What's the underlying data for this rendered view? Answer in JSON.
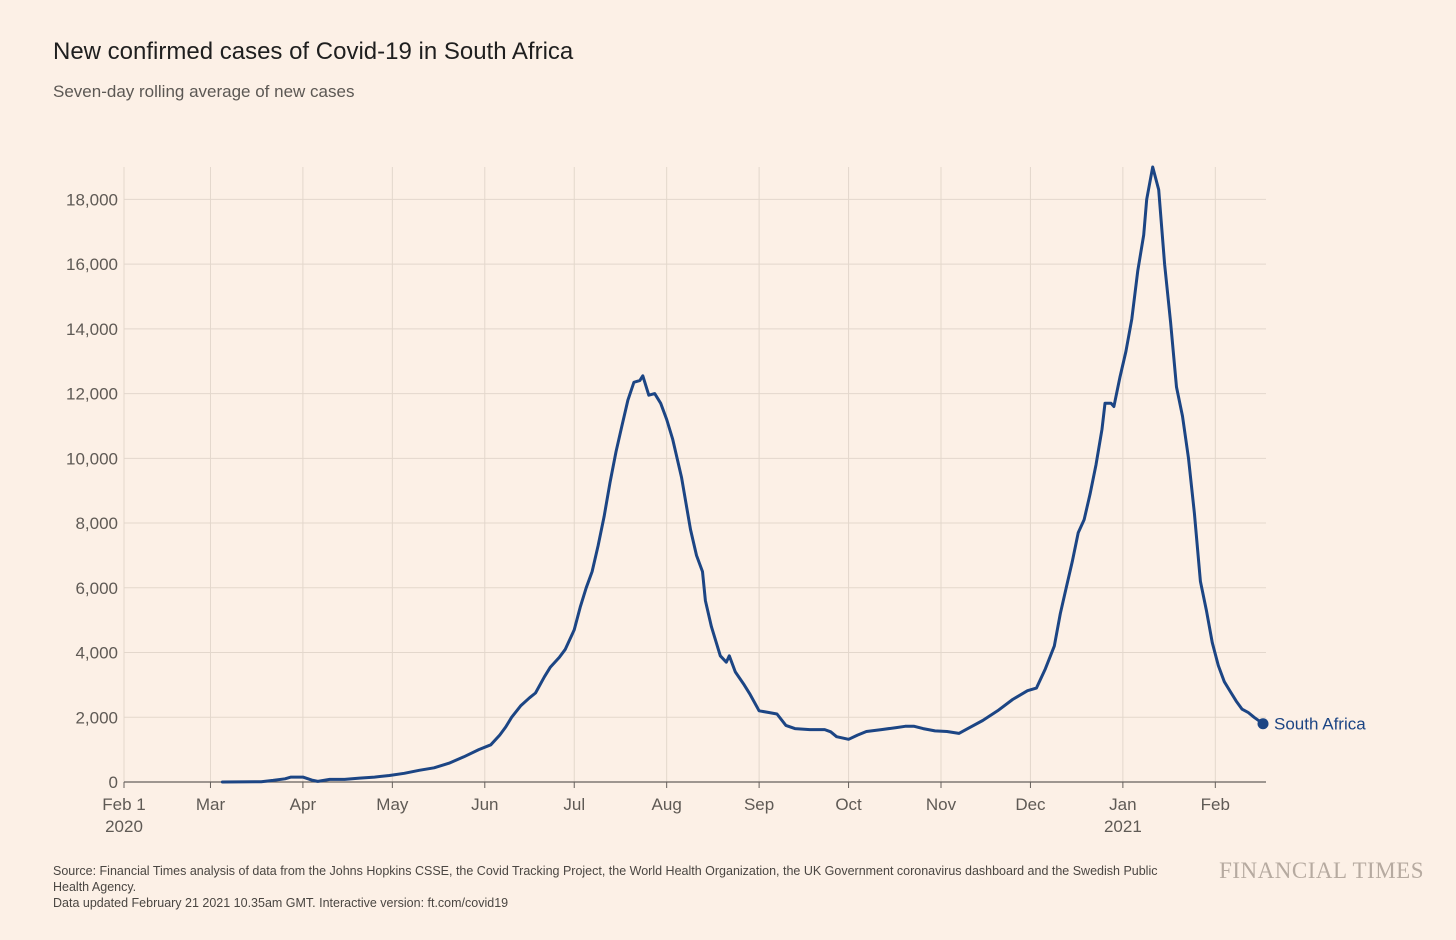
{
  "header": {
    "title": "New confirmed cases of Covid-19 in South Africa",
    "subtitle": "Seven-day rolling average of new cases"
  },
  "footer": {
    "source": "Source: Financial Times analysis of data from the Johns Hopkins CSSE, the Covid Tracking Project, the World Health Organization, the UK Government coronavirus dashboard and the Swedish Public Health Agency.",
    "updated": "Data updated February 21 2021 10.35am GMT. Interactive version: ft.com/covid19",
    "logo": "FINANCIAL TIMES"
  },
  "colors": {
    "background": "#fcf0e6",
    "line": "#1c4584",
    "grid": "#e3d7cc",
    "axis": "#66605c"
  },
  "chart_data": {
    "type": "line",
    "title": "New confirmed cases of Covid-19 in South Africa",
    "subtitle": "Seven-day rolling average of new cases",
    "xlabel": "",
    "ylabel": "",
    "ylim": [
      0,
      19000
    ],
    "xlim": [
      "2020-02-01",
      "2021-02-18"
    ],
    "yticks": [
      0,
      2000,
      4000,
      6000,
      8000,
      10000,
      12000,
      14000,
      16000,
      18000
    ],
    "ytick_labels": [
      "0",
      "2,000",
      "4,000",
      "6,000",
      "8,000",
      "10,000",
      "12,000",
      "14,000",
      "16,000",
      "18,000"
    ],
    "xticks": [
      {
        "date": "2020-02-01",
        "label": "Feb 1",
        "sublabel": "2020"
      },
      {
        "date": "2020-03-01",
        "label": "Mar",
        "sublabel": ""
      },
      {
        "date": "2020-04-01",
        "label": "Apr",
        "sublabel": ""
      },
      {
        "date": "2020-05-01",
        "label": "May",
        "sublabel": ""
      },
      {
        "date": "2020-06-01",
        "label": "Jun",
        "sublabel": ""
      },
      {
        "date": "2020-07-01",
        "label": "Jul",
        "sublabel": ""
      },
      {
        "date": "2020-08-01",
        "label": "Aug",
        "sublabel": ""
      },
      {
        "date": "2020-09-01",
        "label": "Sep",
        "sublabel": ""
      },
      {
        "date": "2020-10-01",
        "label": "Oct",
        "sublabel": ""
      },
      {
        "date": "2020-11-01",
        "label": "Nov",
        "sublabel": ""
      },
      {
        "date": "2020-12-01",
        "label": "Dec",
        "sublabel": ""
      },
      {
        "date": "2021-01-01",
        "label": "Jan",
        "sublabel": "2021"
      },
      {
        "date": "2021-02-01",
        "label": "Feb",
        "sublabel": ""
      }
    ],
    "grid": true,
    "series": [
      {
        "name": "South Africa",
        "end_marker": true,
        "points": [
          [
            "2020-03-05",
            0
          ],
          [
            "2020-03-18",
            10
          ],
          [
            "2020-03-22",
            50
          ],
          [
            "2020-03-26",
            100
          ],
          [
            "2020-03-28",
            150
          ],
          [
            "2020-04-01",
            150
          ],
          [
            "2020-04-04",
            60
          ],
          [
            "2020-04-06",
            20
          ],
          [
            "2020-04-10",
            80
          ],
          [
            "2020-04-15",
            80
          ],
          [
            "2020-04-20",
            120
          ],
          [
            "2020-04-25",
            150
          ],
          [
            "2020-04-30",
            200
          ],
          [
            "2020-05-05",
            270
          ],
          [
            "2020-05-10",
            360
          ],
          [
            "2020-05-15",
            440
          ],
          [
            "2020-05-20",
            580
          ],
          [
            "2020-05-25",
            780
          ],
          [
            "2020-05-30",
            1000
          ],
          [
            "2020-06-03",
            1150
          ],
          [
            "2020-06-06",
            1450
          ],
          [
            "2020-06-08",
            1700
          ],
          [
            "2020-06-10",
            2000
          ],
          [
            "2020-06-13",
            2350
          ],
          [
            "2020-06-16",
            2600
          ],
          [
            "2020-06-18",
            2750
          ],
          [
            "2020-06-21",
            3250
          ],
          [
            "2020-06-23",
            3550
          ],
          [
            "2020-06-26",
            3850
          ],
          [
            "2020-06-28",
            4100
          ],
          [
            "2020-07-01",
            4700
          ],
          [
            "2020-07-03",
            5400
          ],
          [
            "2020-07-05",
            6000
          ],
          [
            "2020-07-07",
            6500
          ],
          [
            "2020-07-09",
            7300
          ],
          [
            "2020-07-11",
            8200
          ],
          [
            "2020-07-13",
            9250
          ],
          [
            "2020-07-15",
            10200
          ],
          [
            "2020-07-17",
            11000
          ],
          [
            "2020-07-19",
            11800
          ],
          [
            "2020-07-21",
            12350
          ],
          [
            "2020-07-23",
            12400
          ],
          [
            "2020-07-24",
            12550
          ],
          [
            "2020-07-26",
            11950
          ],
          [
            "2020-07-28",
            12000
          ],
          [
            "2020-07-30",
            11700
          ],
          [
            "2020-08-01",
            11200
          ],
          [
            "2020-08-03",
            10600
          ],
          [
            "2020-08-06",
            9400
          ],
          [
            "2020-08-09",
            7800
          ],
          [
            "2020-08-11",
            7000
          ],
          [
            "2020-08-13",
            6500
          ],
          [
            "2020-08-14",
            5600
          ],
          [
            "2020-08-16",
            4800
          ],
          [
            "2020-08-19",
            3900
          ],
          [
            "2020-08-21",
            3700
          ],
          [
            "2020-08-22",
            3900
          ],
          [
            "2020-08-24",
            3400
          ],
          [
            "2020-08-27",
            3000
          ],
          [
            "2020-08-29",
            2700
          ],
          [
            "2020-09-01",
            2200
          ],
          [
            "2020-09-04",
            2150
          ],
          [
            "2020-09-07",
            2100
          ],
          [
            "2020-09-10",
            1750
          ],
          [
            "2020-09-13",
            1650
          ],
          [
            "2020-09-18",
            1620
          ],
          [
            "2020-09-23",
            1620
          ],
          [
            "2020-09-25",
            1550
          ],
          [
            "2020-09-27",
            1400
          ],
          [
            "2020-10-01",
            1320
          ],
          [
            "2020-10-04",
            1450
          ],
          [
            "2020-10-07",
            1560
          ],
          [
            "2020-10-12",
            1620
          ],
          [
            "2020-10-17",
            1680
          ],
          [
            "2020-10-20",
            1720
          ],
          [
            "2020-10-23",
            1720
          ],
          [
            "2020-10-26",
            1650
          ],
          [
            "2020-10-30",
            1580
          ],
          [
            "2020-11-03",
            1560
          ],
          [
            "2020-11-07",
            1500
          ],
          [
            "2020-11-10",
            1650
          ],
          [
            "2020-11-15",
            1900
          ],
          [
            "2020-11-20",
            2200
          ],
          [
            "2020-11-25",
            2550
          ],
          [
            "2020-11-30",
            2820
          ],
          [
            "2020-12-03",
            2900
          ],
          [
            "2020-12-06",
            3500
          ],
          [
            "2020-12-09",
            4200
          ],
          [
            "2020-12-11",
            5200
          ],
          [
            "2020-12-13",
            6000
          ],
          [
            "2020-12-15",
            6800
          ],
          [
            "2020-12-17",
            7700
          ],
          [
            "2020-12-19",
            8100
          ],
          [
            "2020-12-21",
            8900
          ],
          [
            "2020-12-23",
            9800
          ],
          [
            "2020-12-25",
            10900
          ],
          [
            "2020-12-26",
            11700
          ],
          [
            "2020-12-28",
            11700
          ],
          [
            "2020-12-29",
            11600
          ],
          [
            "2020-12-31",
            12500
          ],
          [
            "2021-01-02",
            13300
          ],
          [
            "2021-01-04",
            14300
          ],
          [
            "2021-01-06",
            15800
          ],
          [
            "2021-01-08",
            16900
          ],
          [
            "2021-01-09",
            18000
          ],
          [
            "2021-01-11",
            19000
          ],
          [
            "2021-01-13",
            18300
          ],
          [
            "2021-01-15",
            16000
          ],
          [
            "2021-01-17",
            14200
          ],
          [
            "2021-01-19",
            12200
          ],
          [
            "2021-01-21",
            11300
          ],
          [
            "2021-01-23",
            10000
          ],
          [
            "2021-01-25",
            8300
          ],
          [
            "2021-01-27",
            6200
          ],
          [
            "2021-01-29",
            5300
          ],
          [
            "2021-01-31",
            4300
          ],
          [
            "2021-02-02",
            3600
          ],
          [
            "2021-02-04",
            3100
          ],
          [
            "2021-02-06",
            2800
          ],
          [
            "2021-02-08",
            2500
          ],
          [
            "2021-02-10",
            2250
          ],
          [
            "2021-02-12",
            2150
          ],
          [
            "2021-02-14",
            2000
          ],
          [
            "2021-02-17",
            1800
          ]
        ]
      }
    ]
  }
}
